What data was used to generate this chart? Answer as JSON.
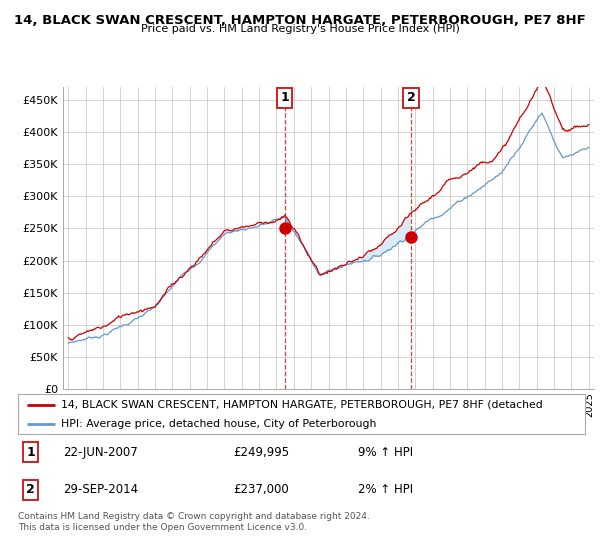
{
  "title": "14, BLACK SWAN CRESCENT, HAMPTON HARGATE, PETERBOROUGH, PE7 8HF",
  "subtitle": "Price paid vs. HM Land Registry's House Price Index (HPI)",
  "yticks": [
    0,
    50000,
    100000,
    150000,
    200000,
    250000,
    300000,
    350000,
    400000,
    450000
  ],
  "ylim": [
    0,
    470000
  ],
  "xlim_left": 1994.7,
  "xlim_right": 2025.3,
  "background_color": "#ffffff",
  "grid_color": "#cccccc",
  "red_color": "#cc0000",
  "blue_color": "#6699cc",
  "blue_fill": "#d6e8f7",
  "marker1_x": 2007.47,
  "marker1_y": 249995,
  "marker2_x": 2014.75,
  "marker2_y": 237000,
  "legend_line1": "14, BLACK SWAN CRESCENT, HAMPTON HARGATE, PETERBOROUGH, PE7 8HF (detached",
  "legend_line2": "HPI: Average price, detached house, City of Peterborough",
  "note1_label": "1",
  "note1_date": "22-JUN-2007",
  "note1_price": "£249,995",
  "note1_hpi": "9% ↑ HPI",
  "note2_label": "2",
  "note2_date": "29-SEP-2014",
  "note2_price": "£237,000",
  "note2_hpi": "2% ↑ HPI",
  "footer": "Contains HM Land Registry data © Crown copyright and database right 2024.\nThis data is licensed under the Open Government Licence v3.0."
}
